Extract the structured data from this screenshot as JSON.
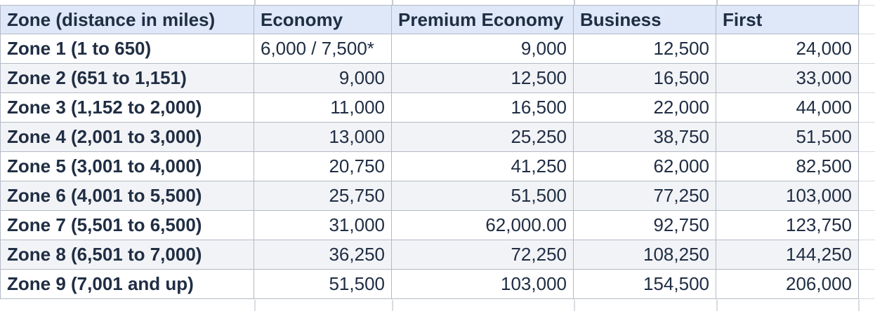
{
  "colors": {
    "header_bg": "#dee8f8",
    "stripe_bg": "#f2f3f6",
    "grid_line": "#b3bac6",
    "outer_grid_line": "#d9dce1",
    "text": "#202e44"
  },
  "table": {
    "column_headers": [
      "Zone (distance in miles)",
      "Economy",
      "Premium Economy",
      "Business",
      "First"
    ],
    "rows": [
      [
        "Zone 1 (1 to 650)",
        "6,000 / 7,500*",
        "9,000",
        "12,500",
        "24,000"
      ],
      [
        "Zone 2 (651 to 1,151)",
        "9,000",
        "12,500",
        "16,500",
        "33,000"
      ],
      [
        "Zone 3 (1,152 to 2,000)",
        "11,000",
        "16,500",
        "22,000",
        "44,000"
      ],
      [
        "Zone 4 (2,001 to 3,000)",
        "13,000",
        "25,250",
        "38,750",
        "51,500"
      ],
      [
        "Zone 5 (3,001 to 4,000)",
        "20,750",
        "41,250",
        "62,000",
        "82,500"
      ],
      [
        "Zone 6 (4,001 to 5,500)",
        "25,750",
        "51,500",
        "77,250",
        "103,000"
      ],
      [
        "Zone 7 (5,501 to 6,500)",
        "31,000",
        "62,000.00",
        "92,750",
        "123,750"
      ],
      [
        "Zone 8 (6,501 to 7,000)",
        "36,250",
        "72,250",
        "108,250",
        "144,250"
      ],
      [
        "Zone 9 (7,001 and up)",
        "51,500",
        "103,000",
        "154,500",
        "206,000"
      ]
    ],
    "left_aligned_cells": [
      [
        0,
        1
      ]
    ]
  }
}
